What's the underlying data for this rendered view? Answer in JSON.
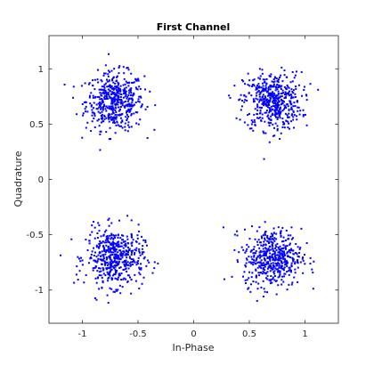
{
  "chart_data": {
    "type": "scatter",
    "title": "First Channel",
    "xlabel": "In-Phase",
    "ylabel": "Quadrature",
    "xlim": [
      -1.3,
      1.3
    ],
    "ylim": [
      -1.3,
      1.3
    ],
    "xticks": [
      -1,
      -0.5,
      0,
      0.5,
      1
    ],
    "xtick_labels": [
      "-1",
      "-0.5",
      "0",
      "0.5",
      "1"
    ],
    "yticks": [
      -1,
      -0.5,
      0,
      0.5,
      1
    ],
    "ytick_labels": [
      "-1",
      "-0.5",
      "0",
      "0.5",
      "1"
    ],
    "grid": false,
    "marker_color": "#0000ff",
    "series": [
      {
        "clusters": [
          {
            "center": [
              -0.707,
              0.707
            ],
            "spread": 0.13,
            "count": 500
          },
          {
            "center": [
              0.707,
              0.707
            ],
            "spread": 0.13,
            "count": 500
          },
          {
            "center": [
              -0.707,
              -0.707
            ],
            "spread": 0.13,
            "count": 500
          },
          {
            "center": [
              0.707,
              -0.707
            ],
            "spread": 0.13,
            "count": 500
          }
        ]
      }
    ]
  }
}
